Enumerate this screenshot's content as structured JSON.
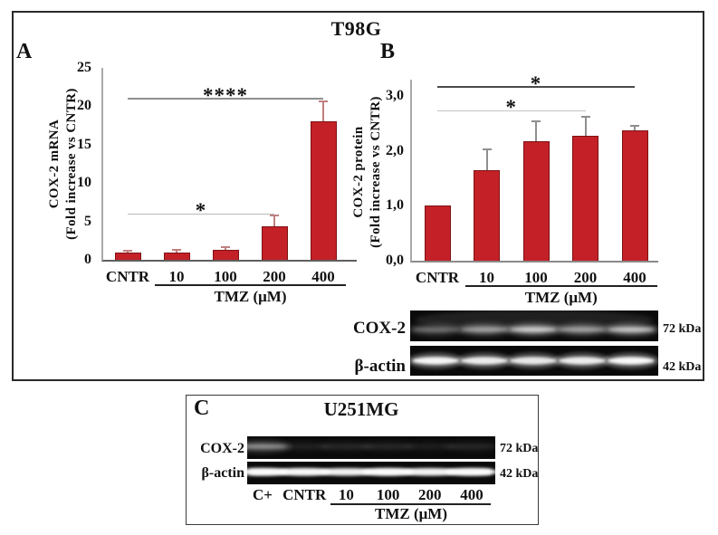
{
  "t98g": {
    "title": "T98G",
    "panel_a_label": "A",
    "panel_b_label": "B",
    "blot_rows": [
      {
        "label": "COX-2",
        "kda": "72 kDa",
        "lane_intensities": [
          0.35,
          0.55,
          0.75,
          0.55,
          0.72
        ]
      },
      {
        "label": "β-actin",
        "kda": "42 kDa",
        "lane_intensities": [
          0.95,
          0.9,
          0.88,
          0.9,
          0.97
        ]
      }
    ]
  },
  "u251mg": {
    "panel_label": "C",
    "title": "U251MG",
    "lane_labels": [
      "C+",
      "CNTR",
      "10",
      "100",
      "200",
      "400"
    ],
    "xlabel": "TMZ (μM)",
    "blot_rows": [
      {
        "label": "COX-2",
        "kda": "72 kDa",
        "lane_intensities": [
          0.5,
          0.08,
          0.1,
          0.1,
          0.07,
          0.1
        ]
      },
      {
        "label": "β-actin",
        "kda": "42 kDa",
        "streak": true,
        "lane_intensities": [
          0.95,
          0.85,
          0.7,
          0.95,
          0.75,
          0.95
        ]
      }
    ]
  },
  "chart_data": [
    {
      "id": "A",
      "type": "bar",
      "panel": "A",
      "cell_line": "T98G",
      "categories": [
        "CNTR",
        "10",
        "100",
        "200",
        "400"
      ],
      "values": [
        1.0,
        1.0,
        1.35,
        4.4,
        18.0
      ],
      "errors": [
        0.1,
        0.2,
        0.15,
        1.3,
        2.5
      ],
      "ylabel1": "COX-2 mRNA",
      "ylabel2": "(Fold increase vs CNTR)",
      "xlabel": "TMZ (μM)",
      "ylim": [
        0,
        25
      ],
      "yticks": [
        {
          "label": "0",
          "v": 0
        },
        {
          "label": "5",
          "v": 5
        },
        {
          "label": "10",
          "v": 10
        },
        {
          "label": "15",
          "v": 15
        },
        {
          "label": "20",
          "v": 20
        },
        {
          "label": "25",
          "v": 25
        }
      ],
      "bar_color": "#C32127",
      "bar_border": "#7E1114",
      "error_color": "#C08080",
      "significance": [
        {
          "label": "*",
          "from": 0,
          "to": 3,
          "y": 5.9,
          "line_color": "#b9b9b9",
          "thick": 1
        },
        {
          "label": "****",
          "from": 0,
          "to": 4,
          "y": 20.9,
          "line_color": "#8f8f8f",
          "thick": 2
        }
      ]
    },
    {
      "id": "B",
      "type": "bar",
      "panel": "B",
      "cell_line": "T98G",
      "categories": [
        "CNTR",
        "10",
        "100",
        "200",
        "400"
      ],
      "values": [
        1.0,
        1.65,
        2.18,
        2.28,
        2.38
      ],
      "errors": [
        0,
        0.37,
        0.34,
        0.33,
        0.06
      ],
      "ylabel1": "COX-2 protein",
      "ylabel2": "(Fold increase vs CNTR)",
      "xlabel": "TMZ (μM)",
      "ylim": [
        0,
        3.3
      ],
      "yticks": [
        {
          "label": "0,0",
          "v": 0
        },
        {
          "label": "1,0",
          "v": 1
        },
        {
          "label": "2,0",
          "v": 2
        },
        {
          "label": "3,0",
          "v": 3
        }
      ],
      "bar_color": "#C32127",
      "bar_border": "#7E1114",
      "error_color": "#8f8f8f",
      "significance": [
        {
          "label": "*",
          "from": 0,
          "to": 3,
          "y": 2.72,
          "line_color": "#c4c4c4",
          "thick": 1
        },
        {
          "label": "*",
          "from": 0,
          "to": 4,
          "y": 3.16,
          "line_color": "#4a4a4a",
          "thick": 2
        }
      ]
    }
  ]
}
